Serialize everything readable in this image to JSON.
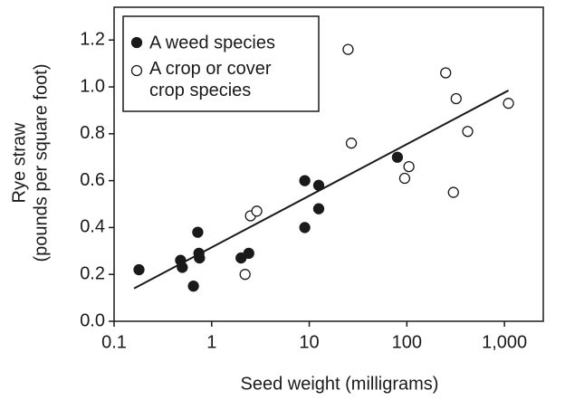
{
  "chart_data": {
    "type": "scatter",
    "xlabel": "Seed weight (milligrams)",
    "ylabel": [
      "Rye straw",
      "(pounds per square foot)"
    ],
    "xscale": "log",
    "xlim": [
      0.1,
      2500
    ],
    "ylim": [
      0,
      1.34
    ],
    "xticks": [
      0.1,
      1,
      10,
      100,
      {
        "value": 1000,
        "label": "1,000"
      }
    ],
    "yticks": [
      {
        "value": 0,
        "label": "0.0"
      },
      0.2,
      0.4,
      0.6,
      0.8,
      {
        "value": 1,
        "label": "1.0"
      },
      1.2
    ],
    "legend": "upper left",
    "series": [
      {
        "name": "A weed species",
        "color": "#1a1a1a",
        "filled": true,
        "x": [
          0.18,
          0.48,
          0.5,
          0.72,
          0.74,
          0.75,
          0.65,
          2.0,
          2.4,
          9,
          9,
          12.5,
          12.5,
          80
        ],
        "values": [
          0.22,
          0.26,
          0.23,
          0.38,
          0.29,
          0.27,
          0.15,
          0.27,
          0.29,
          0.6,
          0.4,
          0.58,
          0.48,
          0.7
        ]
      },
      {
        "name": "A crop or cover crop species",
        "color": "#1a1a1a",
        "filled": false,
        "x": [
          2.2,
          2.5,
          2.9,
          25,
          27,
          95,
          105,
          250,
          300,
          320,
          420,
          1100
        ],
        "values": [
          0.2,
          0.45,
          0.47,
          1.16,
          0.76,
          0.61,
          0.66,
          1.06,
          0.55,
          0.95,
          0.81,
          0.93
        ]
      }
    ],
    "trend_line": {
      "x": [
        0.16,
        1100
      ],
      "values": [
        0.14,
        0.985
      ]
    }
  }
}
